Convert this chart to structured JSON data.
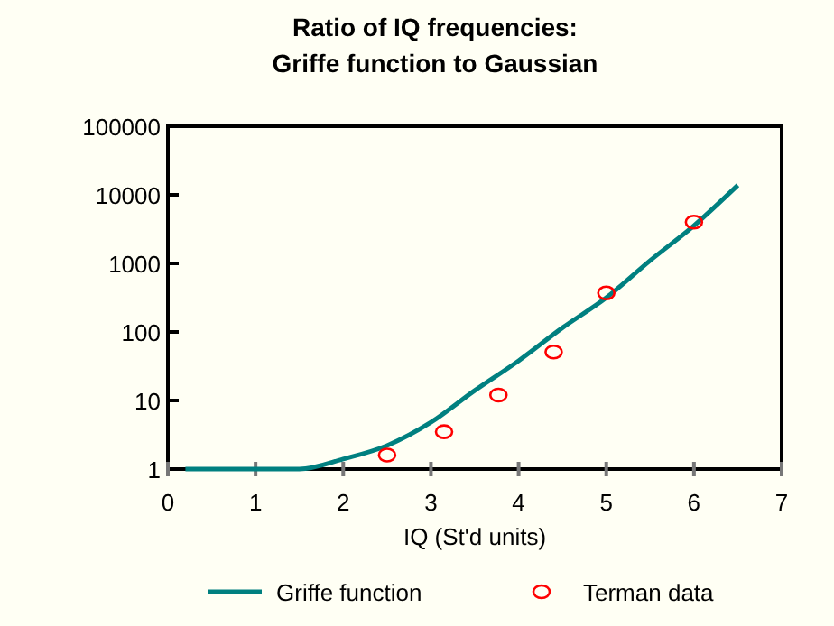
{
  "chart_data": {
    "type": "line",
    "title": "Ratio of IQ frequencies:\nGriffe function to Gaussian",
    "xlabel": "IQ (St'd units)",
    "log": "y",
    "xlim": [
      0,
      7
    ],
    "xticks": [
      0,
      1,
      2,
      3,
      4,
      5,
      6,
      7
    ],
    "ylim": [
      1,
      100000
    ],
    "yticks": [
      1,
      10,
      100,
      1000,
      10000,
      100000
    ],
    "grid": false,
    "legend": "bottom",
    "series": [
      {
        "name": "Griffe function",
        "color": "#008080",
        "marker": "none",
        "line_style": "solid",
        "x": [
          0.2,
          1,
          1.5,
          2,
          2.5,
          3,
          3.5,
          4,
          4.5,
          5,
          5.5,
          6,
          6.5
        ],
        "values": [
          1,
          1,
          1,
          1.4,
          2.2,
          4.8,
          14,
          38,
          115,
          316,
          1100,
          3550,
          13800
        ]
      },
      {
        "name": "Terman data",
        "type": "scatter",
        "color": "#ff0000",
        "marker": "circle",
        "x": [
          2.5,
          3.15,
          3.77,
          4.4,
          5.0,
          6.0
        ],
        "values": [
          1.6,
          3.5,
          12,
          51,
          370,
          4000
        ]
      }
    ]
  }
}
